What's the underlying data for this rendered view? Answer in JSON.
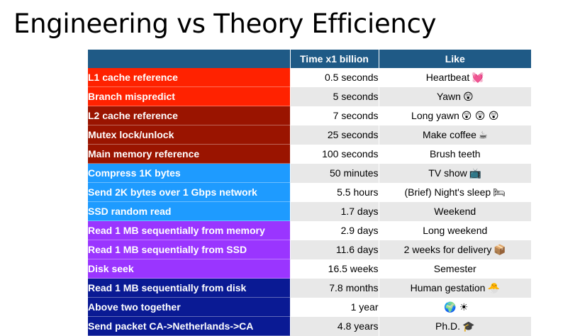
{
  "title": "Engineering vs Theory Efficiency",
  "columns": [
    "",
    "Time x1 billion",
    "Like"
  ],
  "rows": [
    {
      "op": "L1 cache reference",
      "time": "0.5 seconds",
      "like": "Heartbeat",
      "emoji": "💓",
      "color": "#ff2200"
    },
    {
      "op": "Branch mispredict",
      "time": "5 seconds",
      "like": "Yawn",
      "emoji": "😲",
      "color": "#ff2200"
    },
    {
      "op": "L2 cache reference",
      "time": "7 seconds",
      "like": "Long yawn",
      "emoji": "😲 😲 😲",
      "color": "#9a1400"
    },
    {
      "op": "Mutex lock/unlock",
      "time": "25 seconds",
      "like": "Make coffee",
      "emoji": "☕",
      "color": "#9a1400"
    },
    {
      "op": "Main memory reference",
      "time": "100 seconds",
      "like": "Brush teeth",
      "emoji": "",
      "color": "#9a1400"
    },
    {
      "op": "Compress 1K bytes",
      "time": "50 minutes",
      "like": "TV show",
      "emoji": "📺",
      "color": "#1e9bff"
    },
    {
      "op": "Send 2K bytes over 1 Gbps network",
      "time": "5.5 hours",
      "like": "(Brief) Night's sleep",
      "emoji": "🛏",
      "color": "#1e9bff"
    },
    {
      "op": "SSD random read",
      "time": "1.7 days",
      "like": "Weekend",
      "emoji": "",
      "color": "#1e9bff"
    },
    {
      "op": "Read 1 MB sequentially from memory",
      "time": "2.9 days",
      "like": "Long weekend",
      "emoji": "",
      "color": "#9a35ff"
    },
    {
      "op": "Read 1 MB sequentially from SSD",
      "time": "11.6 days",
      "like": "2 weeks for delivery",
      "emoji": "📦",
      "color": "#9a35ff"
    },
    {
      "op": "Disk seek",
      "time": "16.5 weeks",
      "like": "Semester",
      "emoji": "",
      "color": "#9a35ff"
    },
    {
      "op": "Read 1 MB sequentially from disk",
      "time": "7.8 months",
      "like": "Human gestation",
      "emoji": "🐣",
      "color": "#0a1a94"
    },
    {
      "op": "Above two together",
      "time": "1 year",
      "like": "",
      "emoji": "🌍 ☀",
      "color": "#0a1a94"
    },
    {
      "op": "Send packet CA->Netherlands->CA",
      "time": "4.8 years",
      "like": "Ph.D.",
      "emoji": "🎓",
      "color": "#0a1a94"
    }
  ]
}
